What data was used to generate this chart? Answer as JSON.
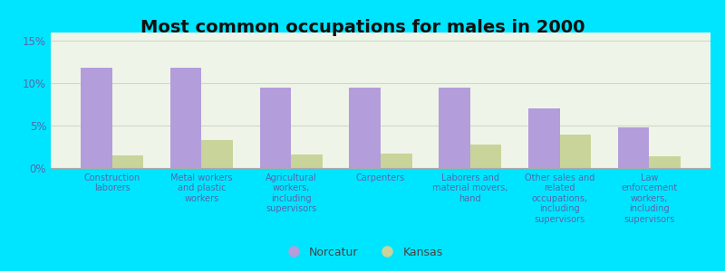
{
  "title": "Most common occupations for males in 2000",
  "categories": [
    "Construction\nlaborers",
    "Metal workers\nand plastic\nworkers",
    "Agricultural\nworkers,\nincluding\nsupervisors",
    "Carpenters",
    "Laborers and\nmaterial movers,\nhand",
    "Other sales and\nrelated\noccupations,\nincluding\nsupervisors",
    "Law\nenforcement\nworkers,\nincluding\nsupervisors"
  ],
  "norcatur_values": [
    11.8,
    11.8,
    9.5,
    9.5,
    9.5,
    7.0,
    4.8
  ],
  "kansas_values": [
    1.5,
    3.3,
    1.6,
    1.7,
    2.8,
    3.9,
    1.4
  ],
  "norcatur_color": "#b39ddb",
  "kansas_color": "#c8d49a",
  "background_outer": "#00e5ff",
  "background_inner_top": "#e8f4e8",
  "background_inner_bottom": "#f8fff8",
  "ylim": [
    0,
    16
  ],
  "yticks": [
    0,
    5,
    10,
    15
  ],
  "ytick_labels": [
    "0%",
    "5%",
    "10%",
    "15%"
  ],
  "legend_labels": [
    "Norcatur",
    "Kansas"
  ],
  "title_fontsize": 14,
  "bar_width": 0.35,
  "grid_color": "#d0d8c8",
  "tick_label_color": "#5566aa",
  "axis_label_color": "#5566aa"
}
